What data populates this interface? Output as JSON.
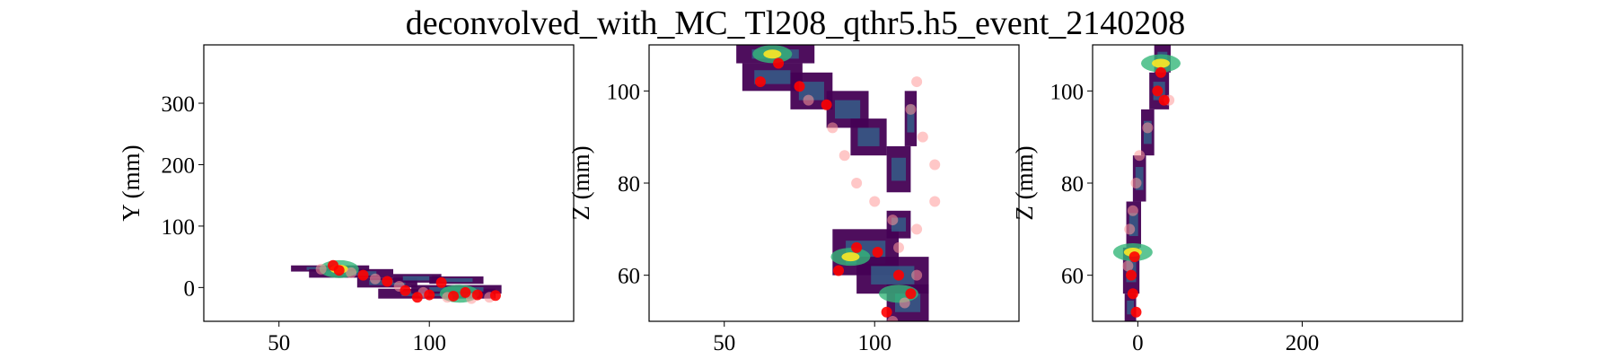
{
  "figure": {
    "title": "deconvolved_with_MC_Tl208_qthr5.h5_event_2140208"
  },
  "colors": {
    "cmap_low": "#440154",
    "cmap_mid": "#31688e",
    "cmap_mid2": "#35b779",
    "cmap_high": "#fde725",
    "mc_hits": "#ff0000",
    "mc_hits_faint": "#ff9999"
  },
  "chart_data": [
    {
      "type": "heatmap",
      "title": "",
      "xlabel": "",
      "ylabel": "Y (mm)",
      "xlim": [
        25,
        148
      ],
      "ylim": [
        -55,
        395
      ],
      "xticks": [
        50,
        100
      ],
      "yticks": [
        0,
        100,
        200,
        300
      ],
      "grid": false,
      "track_segments": [
        {
          "x0": 54,
          "x1": 80,
          "y0": 26,
          "y1": 36
        },
        {
          "x0": 60,
          "x1": 88,
          "y0": 16,
          "y1": 30
        },
        {
          "x0": 76,
          "x1": 96,
          "y0": 0,
          "y1": 16
        },
        {
          "x0": 88,
          "x1": 104,
          "y0": 8,
          "y1": 22
        },
        {
          "x0": 83,
          "x1": 122,
          "y0": -18,
          "y1": -2
        },
        {
          "x0": 94,
          "x1": 124,
          "y0": -10,
          "y1": 4
        },
        {
          "x0": 100,
          "x1": 118,
          "y0": 6,
          "y1": 18
        }
      ],
      "hot_spots": [
        {
          "x": 70,
          "y": 30,
          "level": 0.6
        },
        {
          "x": 110,
          "y": -10,
          "level": 0.45
        }
      ],
      "mc_points": [
        {
          "x": 68,
          "y": 36
        },
        {
          "x": 70,
          "y": 28
        },
        {
          "x": 78,
          "y": 20
        },
        {
          "x": 86,
          "y": 10
        },
        {
          "x": 92,
          "y": -5
        },
        {
          "x": 100,
          "y": -12
        },
        {
          "x": 108,
          "y": -14
        },
        {
          "x": 116,
          "y": -12
        },
        {
          "x": 122,
          "y": -13
        },
        {
          "x": 104,
          "y": 8
        },
        {
          "x": 96,
          "y": -16
        },
        {
          "x": 112,
          "y": -8
        }
      ],
      "mc_faint_points": [
        {
          "x": 64,
          "y": 30
        },
        {
          "x": 74,
          "y": 24
        },
        {
          "x": 82,
          "y": 14
        },
        {
          "x": 90,
          "y": 2
        },
        {
          "x": 98,
          "y": -8
        },
        {
          "x": 106,
          "y": -16
        },
        {
          "x": 114,
          "y": -18
        },
        {
          "x": 120,
          "y": -16
        }
      ]
    },
    {
      "type": "heatmap",
      "title": "",
      "xlabel": "",
      "ylabel": "Z (mm)",
      "xlim": [
        25,
        148
      ],
      "ylim": [
        50,
        110
      ],
      "xticks": [
        50,
        100
      ],
      "yticks": [
        60,
        80,
        100
      ],
      "grid": false,
      "track_segments": [
        {
          "x0": 54,
          "x1": 80,
          "y0": 106,
          "y1": 110
        },
        {
          "x0": 56,
          "x1": 76,
          "y0": 100,
          "y1": 106
        },
        {
          "x0": 72,
          "x1": 86,
          "y0": 96,
          "y1": 104
        },
        {
          "x0": 84,
          "x1": 98,
          "y0": 92,
          "y1": 100
        },
        {
          "x0": 92,
          "x1": 104,
          "y0": 86,
          "y1": 94
        },
        {
          "x0": 104,
          "x1": 112,
          "y0": 78,
          "y1": 88
        },
        {
          "x0": 110,
          "x1": 114,
          "y0": 88,
          "y1": 100
        },
        {
          "x0": 86,
          "x1": 108,
          "y0": 60,
          "y1": 70
        },
        {
          "x0": 94,
          "x1": 118,
          "y0": 56,
          "y1": 64
        },
        {
          "x0": 104,
          "x1": 118,
          "y0": 50,
          "y1": 58
        },
        {
          "x0": 104,
          "x1": 112,
          "y0": 68,
          "y1": 74
        }
      ],
      "hot_spots": [
        {
          "x": 66,
          "y": 108,
          "level": 1.0
        },
        {
          "x": 92,
          "y": 64,
          "level": 0.7
        },
        {
          "x": 108,
          "y": 56,
          "level": 0.5
        }
      ],
      "mc_points": [
        {
          "x": 68,
          "y": 106
        },
        {
          "x": 62,
          "y": 102
        },
        {
          "x": 75,
          "y": 101
        },
        {
          "x": 84,
          "y": 97
        },
        {
          "x": 94,
          "y": 66
        },
        {
          "x": 101,
          "y": 65
        },
        {
          "x": 88,
          "y": 61
        },
        {
          "x": 108,
          "y": 60
        },
        {
          "x": 112,
          "y": 56
        },
        {
          "x": 104,
          "y": 52
        }
      ],
      "mc_faint_points": [
        {
          "x": 78,
          "y": 98
        },
        {
          "x": 86,
          "y": 92
        },
        {
          "x": 90,
          "y": 86
        },
        {
          "x": 94,
          "y": 80
        },
        {
          "x": 100,
          "y": 76
        },
        {
          "x": 106,
          "y": 72
        },
        {
          "x": 114,
          "y": 70
        },
        {
          "x": 120,
          "y": 76
        },
        {
          "x": 120,
          "y": 84
        },
        {
          "x": 116,
          "y": 90
        },
        {
          "x": 112,
          "y": 96
        },
        {
          "x": 114,
          "y": 102
        },
        {
          "x": 108,
          "y": 66
        },
        {
          "x": 114,
          "y": 60
        },
        {
          "x": 110,
          "y": 54
        },
        {
          "x": 106,
          "y": 50
        }
      ]
    },
    {
      "type": "heatmap",
      "title": "",
      "xlabel": "",
      "ylabel": "Z (mm)",
      "xlim": [
        -55,
        395
      ],
      "ylim": [
        50,
        110
      ],
      "xticks": [
        0,
        200
      ],
      "yticks": [
        60,
        80,
        100
      ],
      "grid": false,
      "track_segments": [
        {
          "x0": 20,
          "x1": 40,
          "y0": 104,
          "y1": 110
        },
        {
          "x0": 14,
          "x1": 38,
          "y0": 96,
          "y1": 104
        },
        {
          "x0": 4,
          "x1": 20,
          "y0": 86,
          "y1": 96
        },
        {
          "x0": -6,
          "x1": 10,
          "y0": 76,
          "y1": 86
        },
        {
          "x0": -14,
          "x1": 4,
          "y0": 66,
          "y1": 76
        },
        {
          "x0": -18,
          "x1": 2,
          "y0": 56,
          "y1": 66
        },
        {
          "x0": -16,
          "x1": -2,
          "y0": 50,
          "y1": 56
        }
      ],
      "hot_spots": [
        {
          "x": 28,
          "y": 106,
          "level": 0.6
        },
        {
          "x": -6,
          "y": 65,
          "level": 0.8
        }
      ],
      "mc_points": [
        {
          "x": 28,
          "y": 104
        },
        {
          "x": 24,
          "y": 100
        },
        {
          "x": 32,
          "y": 98
        },
        {
          "x": -4,
          "y": 64
        },
        {
          "x": -8,
          "y": 60
        },
        {
          "x": -6,
          "y": 56
        },
        {
          "x": -2,
          "y": 52
        }
      ],
      "mc_faint_points": [
        {
          "x": 38,
          "y": 98
        },
        {
          "x": 12,
          "y": 92
        },
        {
          "x": 2,
          "y": 86
        },
        {
          "x": -2,
          "y": 80
        },
        {
          "x": -6,
          "y": 74
        },
        {
          "x": -10,
          "y": 70
        },
        {
          "x": -12,
          "y": 62
        }
      ]
    }
  ]
}
